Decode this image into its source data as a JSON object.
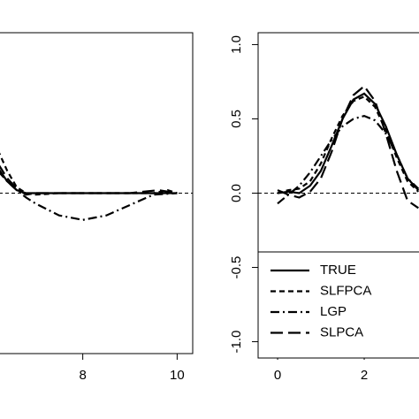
{
  "chart_data": [
    {
      "type": "line",
      "xlim": [
        -0.33,
        10.33
      ],
      "ylim": [
        -1.08,
        1.08
      ],
      "xticks": [
        8,
        10
      ],
      "hline": 0,
      "series": [
        {
          "name": "TRUE",
          "color": "#000000",
          "linestyle": "solid",
          "x": [
            6.2,
            6.4,
            6.6,
            6.8,
            7,
            7.5,
            8,
            8.5,
            9,
            9.5,
            10
          ],
          "values": [
            0.17,
            0.08,
            0.02,
            0,
            0,
            0,
            0,
            0,
            0,
            0,
            0
          ]
        },
        {
          "name": "SLFPCA",
          "color": "#000000",
          "linestyle": "dashed",
          "x": [
            6.2,
            6.4,
            6.6,
            6.8,
            7,
            7.5,
            8,
            8.5,
            9,
            9.5,
            9.8,
            10
          ],
          "values": [
            0.29,
            0.15,
            0.04,
            0,
            -0.01,
            0,
            0,
            0,
            0,
            0,
            0.02,
            0
          ]
        },
        {
          "name": "LGP",
          "color": "#000000",
          "linestyle": "dashdot",
          "x": [
            6.2,
            6.4,
            6.6,
            6.8,
            7,
            7.5,
            8,
            8.5,
            9,
            9.5,
            10
          ],
          "values": [
            0.15,
            0.08,
            0.02,
            -0.03,
            -0.07,
            -0.15,
            -0.18,
            -0.15,
            -0.08,
            -0.01,
            0
          ]
        },
        {
          "name": "SLPCA",
          "color": "#000000",
          "linestyle": "longdash",
          "x": [
            6.2,
            6.4,
            6.6,
            6.8,
            7,
            7.5,
            8,
            8.5,
            9,
            9.6,
            10
          ],
          "values": [
            0.2,
            0.1,
            0.03,
            -0.01,
            0,
            0,
            0,
            0,
            0,
            0.02,
            0
          ]
        }
      ]
    },
    {
      "type": "line",
      "xlim": [
        -0.45,
        10.45
      ],
      "ylim": [
        -1.08,
        1.08
      ],
      "xticks": [
        0,
        2
      ],
      "yticks": [
        {
          "value": -1,
          "label": "-1.0"
        },
        {
          "value": -0.5,
          "label": "-0.5"
        },
        {
          "value": 0,
          "label": "0.0"
        },
        {
          "value": 0.5,
          "label": "0.5"
        },
        {
          "value": 1,
          "label": "1.0"
        }
      ],
      "hline": 0,
      "legend": "bottom-left",
      "series": [
        {
          "name": "TRUE",
          "color": "#000000",
          "linestyle": "solid",
          "x": [
            0,
            0.25,
            0.5,
            0.75,
            1,
            1.25,
            1.5,
            1.75,
            2,
            2.25,
            2.5,
            2.75,
            3,
            3.25
          ],
          "values": [
            0,
            0.01,
            0,
            0.05,
            0.15,
            0.32,
            0.5,
            0.63,
            0.67,
            0.6,
            0.45,
            0.26,
            0.1,
            0.02
          ]
        },
        {
          "name": "SLFPCA",
          "color": "#000000",
          "linestyle": "dashed",
          "x": [
            0,
            0.25,
            0.5,
            0.75,
            1,
            1.25,
            1.5,
            1.75,
            2,
            2.25,
            2.5,
            2.75,
            3,
            3.25
          ],
          "values": [
            0,
            0.02,
            0.03,
            0.08,
            0.2,
            0.37,
            0.52,
            0.62,
            0.65,
            0.58,
            0.42,
            0.24,
            0.08,
            0.01
          ]
        },
        {
          "name": "LGP",
          "color": "#000000",
          "linestyle": "dashdot",
          "x": [
            0,
            0.25,
            0.5,
            0.75,
            1,
            1.25,
            1.5,
            1.75,
            2,
            2.25,
            2.5,
            2.75,
            3,
            3.25
          ],
          "values": [
            -0.07,
            -0.01,
            0.05,
            0.14,
            0.25,
            0.36,
            0.45,
            0.5,
            0.52,
            0.49,
            0.4,
            0.26,
            0.1,
            0.03
          ]
        },
        {
          "name": "SLPCA",
          "color": "#000000",
          "linestyle": "longdash",
          "x": [
            0,
            0.25,
            0.5,
            0.75,
            1,
            1.25,
            1.5,
            1.75,
            2,
            2.25,
            2.5,
            2.75,
            3,
            3.25
          ],
          "values": [
            0.02,
            -0.01,
            -0.03,
            0.01,
            0.1,
            0.28,
            0.5,
            0.66,
            0.72,
            0.62,
            0.4,
            0.15,
            -0.05,
            -0.1
          ]
        }
      ]
    }
  ]
}
